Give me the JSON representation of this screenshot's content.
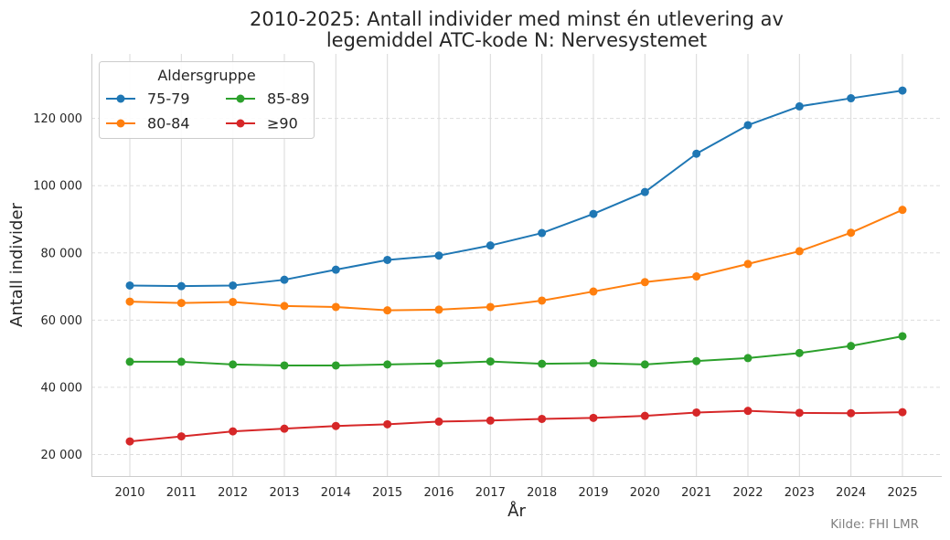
{
  "chart_data": {
    "type": "line",
    "title_line1": "2010-2025: Antall individer med minst én utlevering av",
    "title_line2": "legemiddel ATC-kode N: Nervesystemet",
    "xlabel": "År",
    "ylabel": "Antall individer",
    "x": [
      2010,
      2011,
      2012,
      2013,
      2014,
      2015,
      2016,
      2017,
      2018,
      2019,
      2020,
      2021,
      2022,
      2023,
      2024,
      2025
    ],
    "x_tick_labels": [
      "2010",
      "2011",
      "2012",
      "2013",
      "2014",
      "2015",
      "2016",
      "2017",
      "2018",
      "2019",
      "2020",
      "2021",
      "2022",
      "2023",
      "2024",
      "2025"
    ],
    "y_ticks": [
      20000,
      40000,
      60000,
      80000,
      100000,
      120000
    ],
    "y_tick_labels": [
      "20 000",
      "40 000",
      "60 000",
      "80 000",
      "100 000",
      "120 000"
    ],
    "ylim": [
      13600,
      139200
    ],
    "grid": true,
    "legend": {
      "title": "Aldersgruppe",
      "placement": "top-left",
      "columns": 2
    },
    "series": [
      {
        "name": "75-79",
        "color": "#1f77b4",
        "values": [
          70300,
          70100,
          70300,
          72000,
          75000,
          77900,
          79200,
          82200,
          85900,
          91600,
          98100,
          109500,
          118000,
          123600,
          126000,
          128300
        ]
      },
      {
        "name": "80-84",
        "color": "#ff7f0e",
        "values": [
          65500,
          65100,
          65400,
          64200,
          63900,
          62900,
          63100,
          63900,
          65800,
          68500,
          71300,
          73000,
          76700,
          80500,
          86000,
          92800
        ]
      },
      {
        "name": "85-89",
        "color": "#2ca02c",
        "values": [
          47600,
          47600,
          46800,
          46500,
          46500,
          46800,
          47100,
          47700,
          47000,
          47200,
          46800,
          47800,
          48700,
          50200,
          52300,
          55200
        ]
      },
      {
        "name": "≥90",
        "color": "#d62728",
        "values": [
          23900,
          25400,
          26900,
          27700,
          28500,
          29000,
          29800,
          30100,
          30600,
          30900,
          31500,
          32500,
          33000,
          32400,
          32300,
          32600
        ]
      }
    ]
  },
  "source": "Kilde: FHI LMR"
}
